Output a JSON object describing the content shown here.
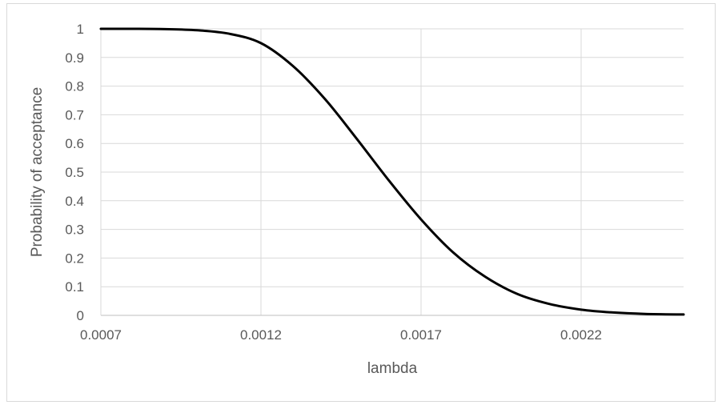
{
  "chart_data": {
    "type": "line",
    "title": "",
    "xlabel": "lambda",
    "ylabel": "Probability of acceptance",
    "xlim": [
      0.0007,
      0.00252
    ],
    "ylim": [
      0,
      1
    ],
    "grid": true,
    "x_ticks": [
      "0.0007",
      "0.0012",
      "0.0017",
      "0.0022"
    ],
    "x_tick_values": [
      0.0007,
      0.0012,
      0.0017,
      0.0022
    ],
    "y_ticks": [
      "0",
      "0.1",
      "0.2",
      "0.3",
      "0.4",
      "0.5",
      "0.6",
      "0.7",
      "0.8",
      "0.9",
      "1"
    ],
    "y_tick_values": [
      0,
      0.1,
      0.2,
      0.3,
      0.4,
      0.5,
      0.6,
      0.7,
      0.8,
      0.9,
      1
    ],
    "series": [
      {
        "color": "#000000",
        "x": [
          0.0007,
          0.0008,
          0.0009,
          0.001,
          0.0011,
          0.0012,
          0.0013,
          0.0014,
          0.0015,
          0.0016,
          0.0017,
          0.0018,
          0.0019,
          0.002,
          0.0021,
          0.0022,
          0.0023,
          0.0024,
          0.00252
        ],
        "y": [
          1.0,
          1.0,
          0.999,
          0.995,
          0.983,
          0.95,
          0.87,
          0.755,
          0.615,
          0.47,
          0.335,
          0.22,
          0.135,
          0.075,
          0.04,
          0.02,
          0.01,
          0.005,
          0.003
        ]
      }
    ]
  }
}
